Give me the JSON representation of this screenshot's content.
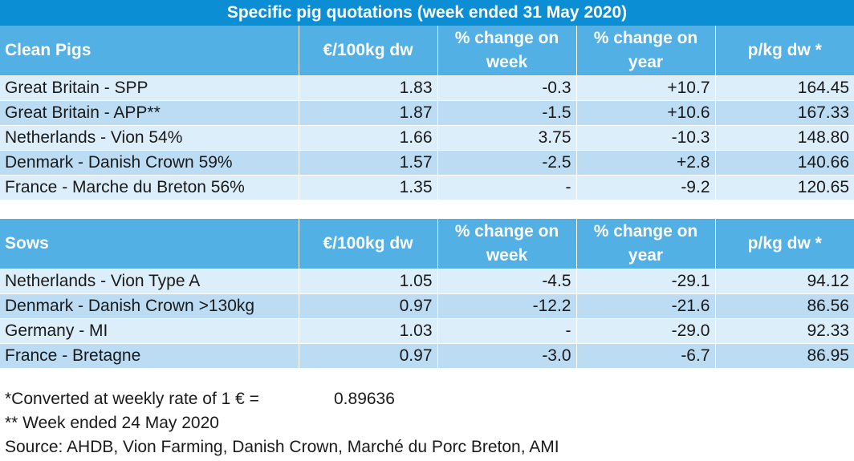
{
  "title": "Specific pig quotations (week ended 31 May 2020)",
  "headers": [
    "€/100kg dw",
    "% change on week",
    "% change on year",
    "p/kg dw *"
  ],
  "clean_pigs": {
    "label": "Clean Pigs",
    "rows": [
      [
        "Great Britain - SPP",
        "1.83",
        "-0.3",
        "+10.7",
        "164.45"
      ],
      [
        "Great Britain - APP**",
        "1.87",
        "-1.5",
        "+10.6",
        "167.33"
      ],
      [
        "Netherlands - Vion 54%",
        "1.66",
        "3.75",
        "-10.3",
        "148.80"
      ],
      [
        "Denmark - Danish Crown 59%",
        "1.57",
        "-2.5",
        "+2.8",
        "140.66"
      ],
      [
        "France - Marche du Breton 56%",
        "1.35",
        "-",
        "-9.2",
        "120.65"
      ]
    ]
  },
  "sows": {
    "label": "Sows",
    "rows": [
      [
        "Netherlands - Vion Type A",
        "1.05",
        "-4.5",
        "-29.1",
        "94.12"
      ],
      [
        "Denmark - Danish Crown >130kg",
        "0.97",
        "-12.2",
        "-21.6",
        "86.56"
      ],
      [
        "Germany - MI",
        "1.03",
        "-",
        "-29.0",
        "92.33"
      ],
      [
        "France - Bretagne",
        "0.97",
        "-3.0",
        "-6.7",
        "86.95"
      ]
    ]
  },
  "notes": {
    "conversion_label": "*Converted at weekly rate of 1 € =",
    "conversion_rate": "0.89636",
    "week_note": "** Week ended 24 May 2020",
    "source": "Source: AHDB, Vion Farming, Danish Crown, Marché du Porc Breton, AMI"
  }
}
